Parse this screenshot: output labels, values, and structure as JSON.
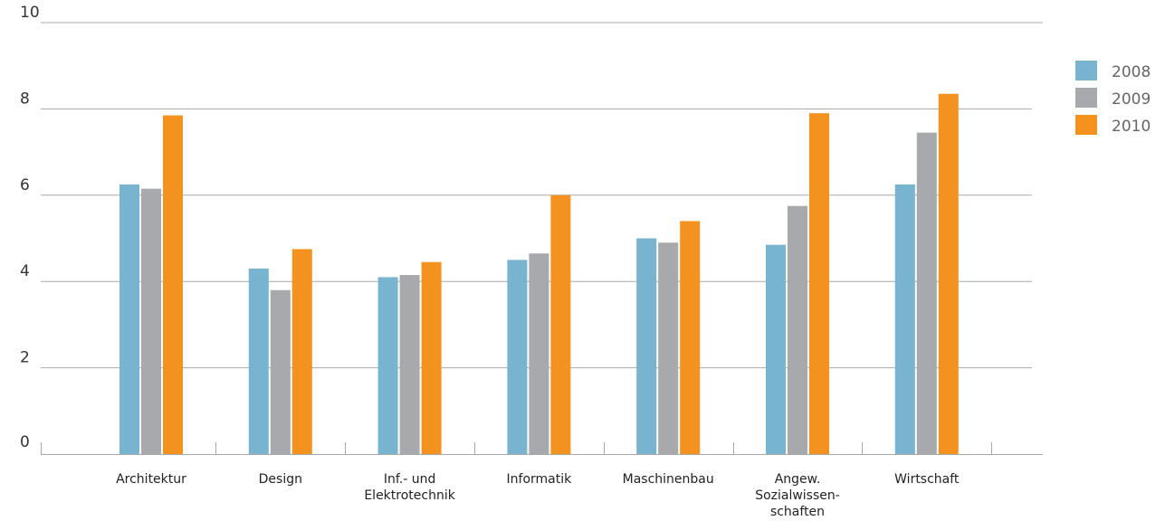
{
  "chart_data": {
    "type": "bar",
    "title": "",
    "xlabel": "",
    "ylabel": "",
    "ylim": [
      0,
      10
    ],
    "yticks": [
      "0",
      "2",
      "4",
      "6",
      "8",
      "10"
    ],
    "grid": true,
    "legend_position": "top-right",
    "categories": [
      [
        "Architektur"
      ],
      [
        "Design"
      ],
      [
        "Inf.- und",
        "Elektrotechnik"
      ],
      [
        "Informatik"
      ],
      [
        "Maschinenbau"
      ],
      [
        "Angew.",
        "Sozialwissen-",
        "schaften"
      ],
      [
        "Wirtschaft"
      ]
    ],
    "series": [
      {
        "name": "2008",
        "color": "#78b4d0",
        "values": [
          6.25,
          4.3,
          4.1,
          4.5,
          5.0,
          4.85,
          6.25
        ]
      },
      {
        "name": "2009",
        "color": "#a8a9ad",
        "values": [
          6.15,
          3.8,
          4.15,
          4.65,
          4.9,
          5.75,
          7.45
        ]
      },
      {
        "name": "2010",
        "color": "#f4921f",
        "values": [
          7.85,
          4.75,
          4.45,
          6.0,
          5.4,
          7.9,
          8.35
        ]
      }
    ]
  }
}
